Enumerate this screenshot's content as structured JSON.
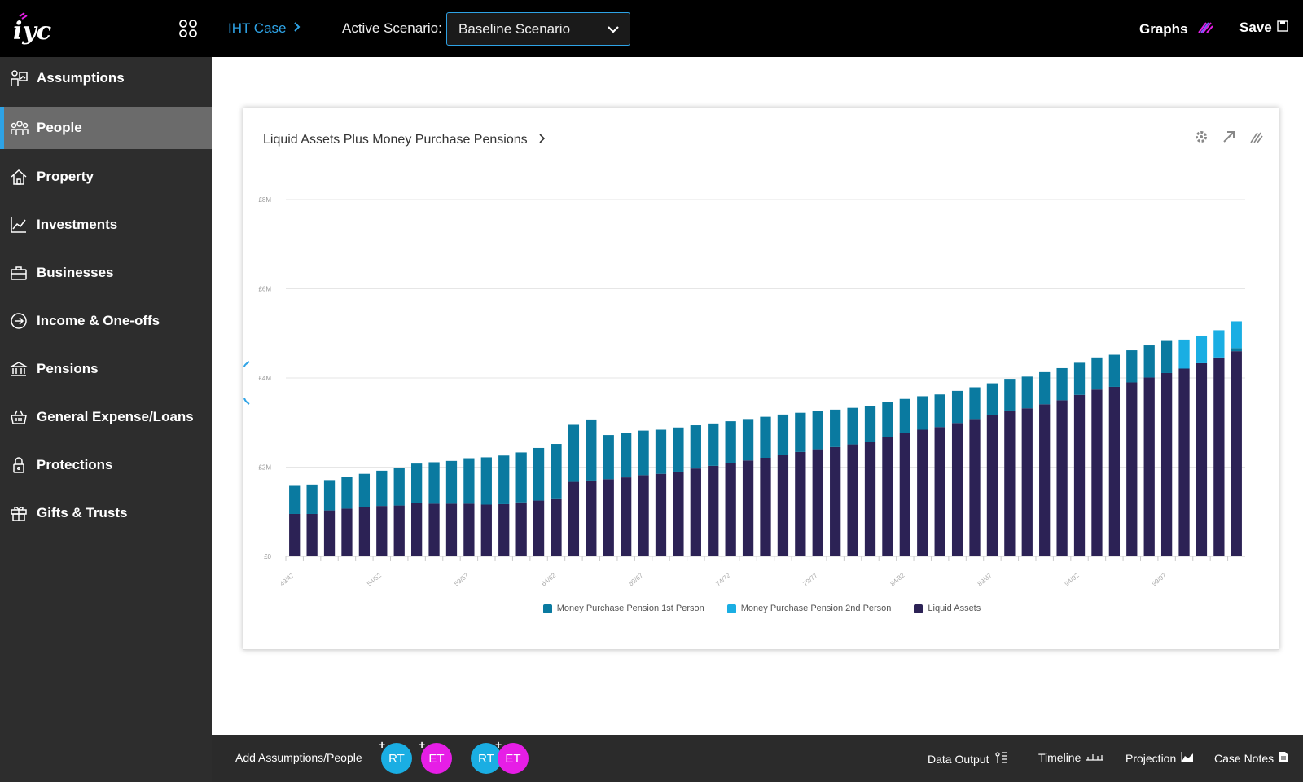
{
  "topbar": {
    "case_label": "IHT Case",
    "scenario_label": "Active Scenario:",
    "scenario_value": "Baseline Scenario",
    "graphs_label": "Graphs",
    "save_label": "Save"
  },
  "sidebar": {
    "items": [
      {
        "label": "Assumptions",
        "icon": "assumptions-icon"
      },
      {
        "label": "People",
        "icon": "people-icon",
        "active": true
      },
      {
        "label": "Property",
        "icon": "home-icon"
      },
      {
        "label": "Investments",
        "icon": "chart-line-icon"
      },
      {
        "label": "Businesses",
        "icon": "briefcase-icon"
      },
      {
        "label": "Income & One-offs",
        "icon": "arrow-circle-icon"
      },
      {
        "label": "Pensions",
        "icon": "bank-icon"
      },
      {
        "label": "General Expense/Loans",
        "icon": "basket-icon"
      },
      {
        "label": "Protections",
        "icon": "lock-icon"
      },
      {
        "label": "Gifts & Trusts",
        "icon": "gift-icon"
      }
    ]
  },
  "card": {
    "title": "Liquid Assets Plus Money Purchase Pensions"
  },
  "colors": {
    "liquid": "#2c2255",
    "mpp1": "#0a7aa0",
    "mpp2": "#1aaee3",
    "accent": "#2ea3e6",
    "avatar_rt": "#1aaee3",
    "avatar_et": "#e61ee6"
  },
  "chart_data": {
    "type": "bar",
    "stacked": true,
    "ylim": [
      0,
      8
    ],
    "yticks": [
      "£0",
      "£2M",
      "£4M",
      "£6M",
      "£8M"
    ],
    "xticklabels": [
      "49/47",
      "54/52",
      "59/57",
      "64/62",
      "69/67",
      "74/72",
      "79/77",
      "84/82",
      "89/87",
      "94/92",
      "99/97"
    ],
    "series": [
      {
        "name": "Money Purchase Pension 1st Person",
        "color": "#0a7aa0",
        "values": [
          0.63,
          0.66,
          0.68,
          0.71,
          0.75,
          0.79,
          0.84,
          0.89,
          0.93,
          0.96,
          1.02,
          1.06,
          1.09,
          1.12,
          1.18,
          1.22,
          1.28,
          1.37,
          0.99,
          0.99,
          1.0,
          0.99,
          0.99,
          0.97,
          0.95,
          0.94,
          0.93,
          0.92,
          0.9,
          0.88,
          0.86,
          0.84,
          0.82,
          0.8,
          0.78,
          0.76,
          0.75,
          0.73,
          0.72,
          0.71,
          0.71,
          0.71,
          0.71,
          0.72,
          0.72,
          0.72,
          0.72,
          0.72,
          0.72,
          0.72,
          0.72,
          0.0,
          0.0,
          0.0,
          0.07
        ]
      },
      {
        "name": "Money Purchase Pension 2nd Person",
        "color": "#1aaee3",
        "values": [
          0,
          0,
          0,
          0,
          0,
          0,
          0,
          0,
          0,
          0,
          0,
          0,
          0,
          0,
          0,
          0,
          0,
          0,
          0,
          0,
          0,
          0,
          0,
          0,
          0,
          0,
          0,
          0,
          0,
          0,
          0,
          0,
          0,
          0,
          0,
          0,
          0,
          0,
          0,
          0,
          0,
          0,
          0,
          0,
          0,
          0,
          0,
          0,
          0,
          0,
          0,
          0.65,
          0.62,
          0.61,
          0.6
        ]
      },
      {
        "name": "Liquid Assets",
        "color": "#2c2255",
        "values": [
          0.95,
          0.95,
          1.03,
          1.07,
          1.1,
          1.13,
          1.14,
          1.19,
          1.18,
          1.18,
          1.18,
          1.16,
          1.17,
          1.21,
          1.25,
          1.3,
          1.67,
          1.7,
          1.73,
          1.77,
          1.82,
          1.85,
          1.9,
          1.97,
          2.03,
          2.09,
          2.15,
          2.21,
          2.28,
          2.34,
          2.4,
          2.45,
          2.51,
          2.57,
          2.68,
          2.77,
          2.84,
          2.9,
          2.99,
          3.08,
          3.17,
          3.27,
          3.32,
          3.41,
          3.5,
          3.62,
          3.74,
          3.8,
          3.9,
          4.01,
          4.11,
          4.21,
          4.33,
          4.46,
          4.6
        ]
      }
    ],
    "legend_position": "bottom",
    "grid": true
  },
  "bottombar": {
    "add_label": "Add Assumptions/People",
    "avatars": [
      "RT",
      "ET"
    ],
    "pair_avatars": [
      "RT",
      "ET"
    ],
    "links": [
      "Data Output",
      "Timeline",
      "Projection",
      "Case Notes"
    ]
  }
}
